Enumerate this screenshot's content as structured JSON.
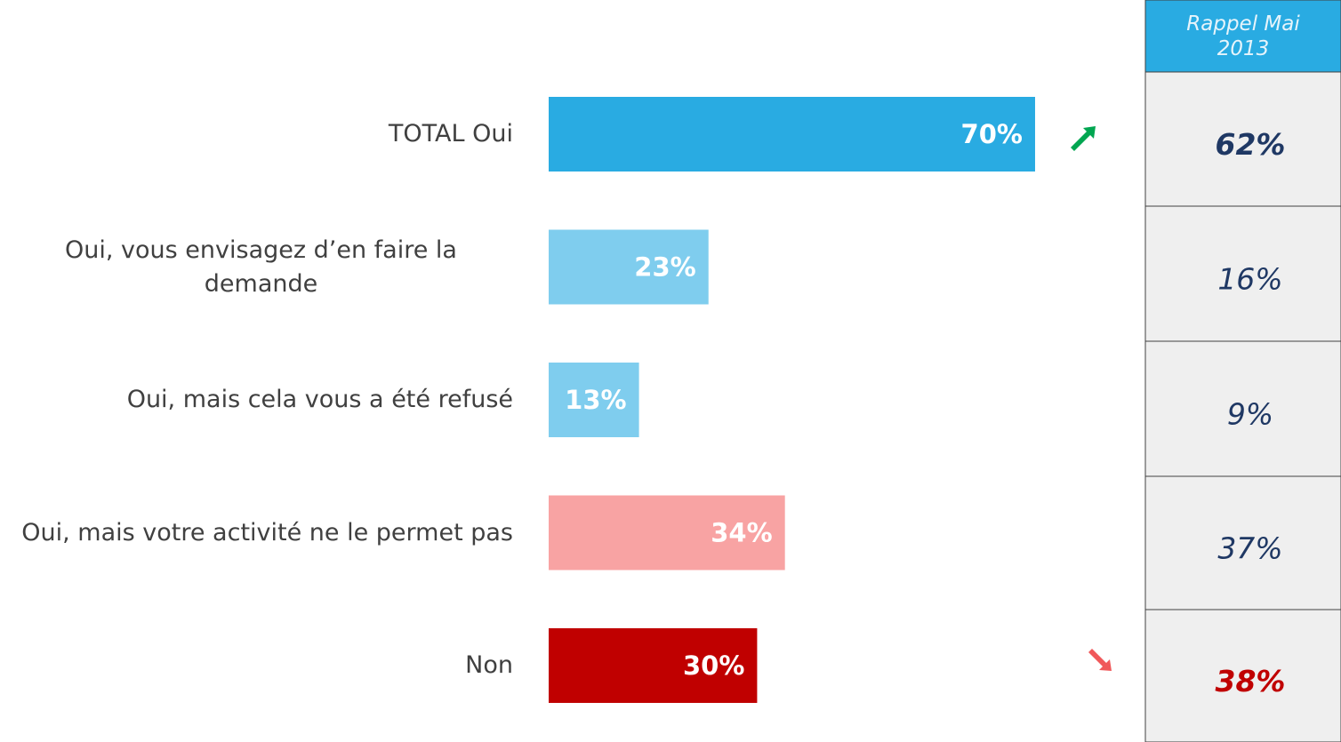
{
  "chart_data": {
    "type": "bar",
    "orientation": "horizontal",
    "categories": [
      "TOTAL Oui",
      "Oui, vous envisagez d’en faire la demande",
      "Oui, mais cela vous a été refusé",
      "Oui, mais votre activité ne le permet pas",
      "Non"
    ],
    "values": [
      70,
      23,
      13,
      34,
      30
    ],
    "value_labels": [
      "70%",
      "23%",
      "13%",
      "34%",
      "30%"
    ],
    "colors": [
      "#29abe2",
      "#7fcdee",
      "#7fcdee",
      "#f8a3a3",
      "#c00000"
    ],
    "comparison": {
      "title": "Rappel Mai 2013",
      "values": [
        62,
        16,
        9,
        37,
        38
      ],
      "value_labels": [
        "62%",
        "16%",
        "9%",
        "37%",
        "38%"
      ]
    }
  }
}
